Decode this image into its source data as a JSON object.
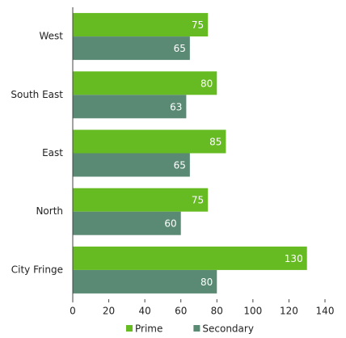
{
  "chart_data": {
    "type": "hbar",
    "categories": [
      "West",
      "South East",
      "East",
      "North",
      "City Fringe"
    ],
    "series": [
      {
        "name": "Prime",
        "color": "#66bb22",
        "values": [
          75,
          80,
          85,
          75,
          130
        ]
      },
      {
        "name": "Secondary",
        "color": "#5a8a74",
        "values": [
          65,
          63,
          65,
          60,
          80
        ]
      }
    ],
    "xlim": [
      0,
      140
    ],
    "xticks": [
      0,
      20,
      40,
      60,
      80,
      100,
      120,
      140
    ],
    "grid": false,
    "legend": "bottom"
  }
}
